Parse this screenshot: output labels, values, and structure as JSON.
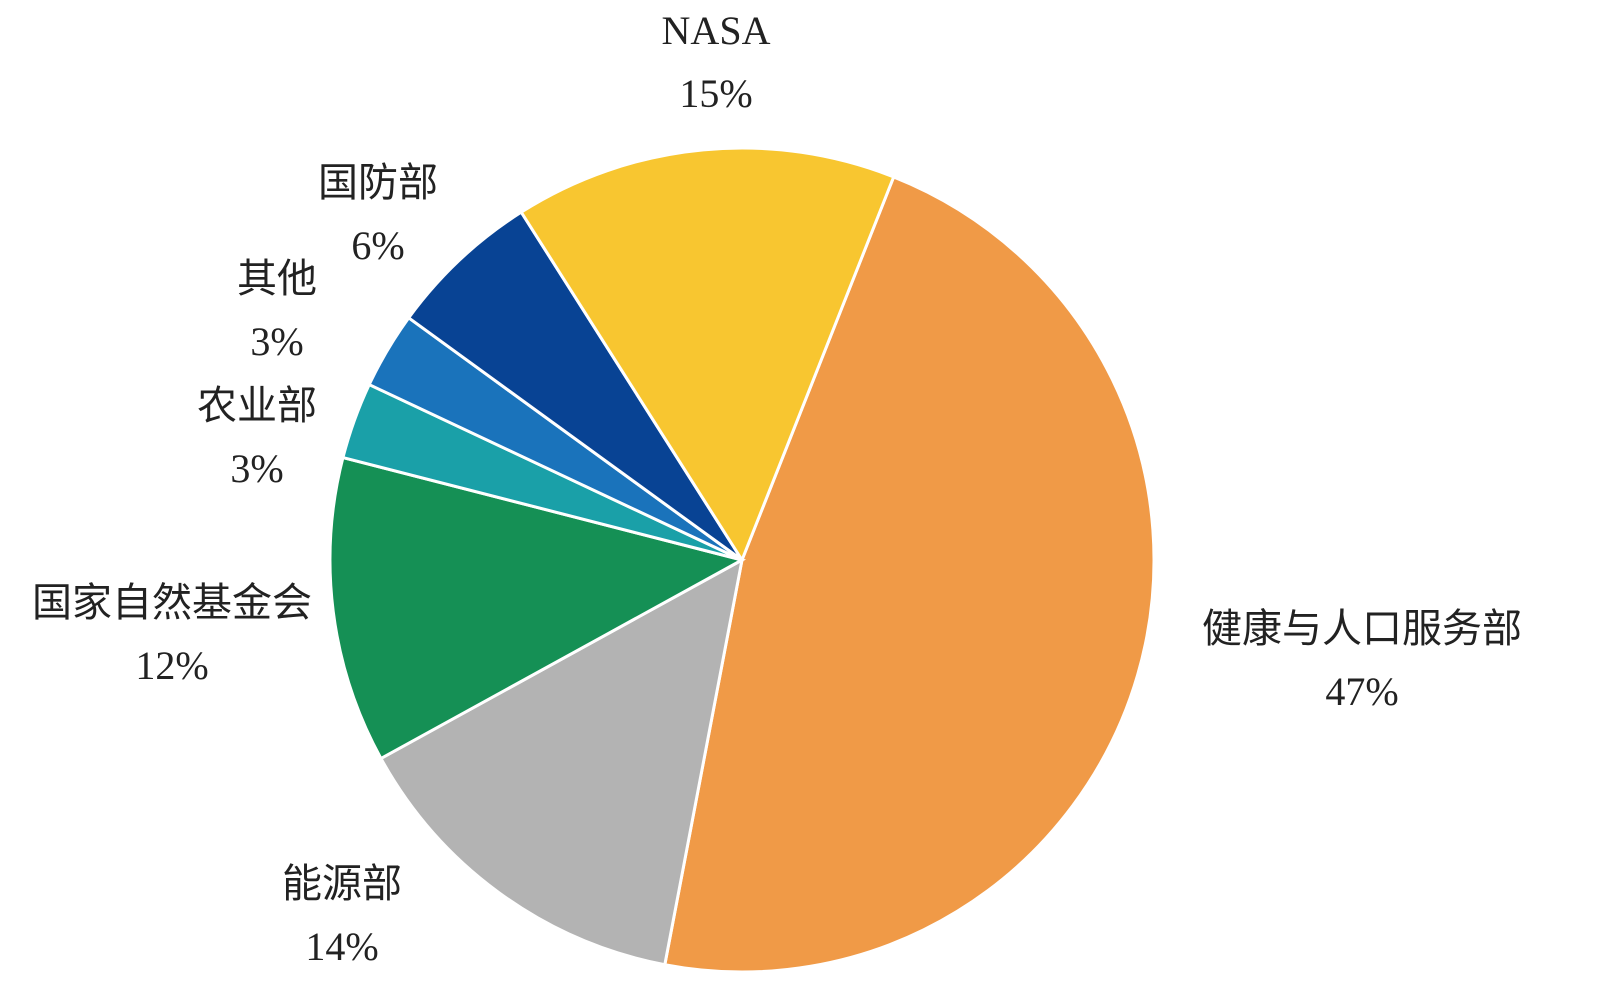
{
  "chart_data": {
    "type": "pie",
    "categories": [
      "健康与人口服务部",
      "能源部",
      "国家自然基金会",
      "农业部",
      "其他",
      "国防部",
      "NASA"
    ],
    "values": [
      47,
      14,
      12,
      3,
      3,
      6,
      15
    ],
    "value_labels": [
      "47%",
      "14%",
      "12%",
      "3%",
      "3%",
      "6%",
      "15%"
    ],
    "colors": [
      "#f09a47",
      "#b3b3b3",
      "#159055",
      "#1aa0a8",
      "#1a73bb",
      "#084394",
      "#f8c630"
    ]
  }
}
